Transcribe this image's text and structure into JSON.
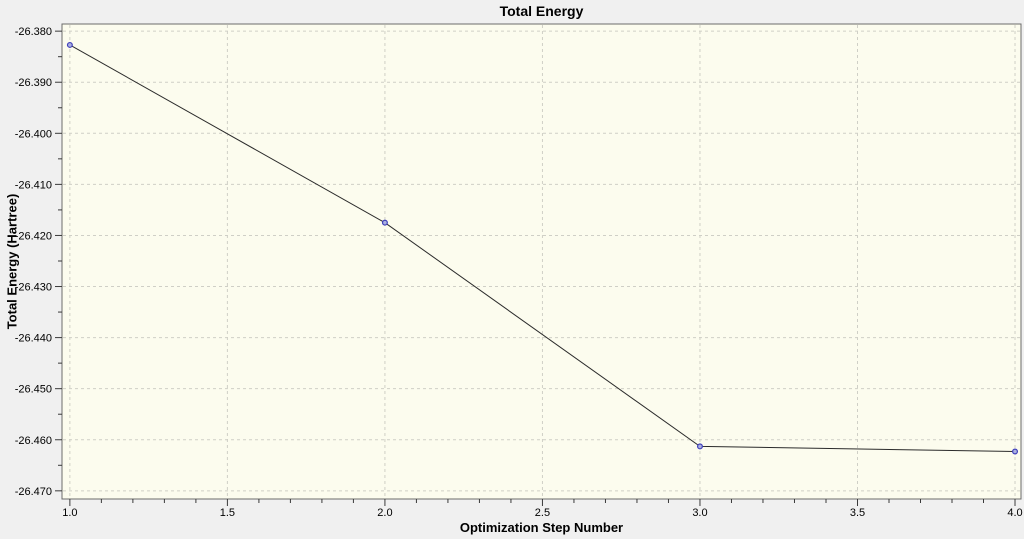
{
  "window": {
    "background": "#f0f0f0"
  },
  "chart_data": {
    "type": "line",
    "title": "Total Energy",
    "xlabel": "Optimization Step Number",
    "ylabel": "Total Energy (Hartree)",
    "series": [
      {
        "name": "Total Energy",
        "x": [
          1.0,
          2.0,
          3.0,
          4.0
        ],
        "y": [
          -26.3827,
          -26.4175,
          -26.4613,
          -26.4623
        ]
      }
    ],
    "xlim": [
      0.975,
      4.019
    ],
    "ylim": [
      -26.4716,
      -26.3786
    ],
    "x_axis": {
      "major_tick_labels": [
        "1.0",
        "1.5",
        "2.0",
        "2.5",
        "3.0",
        "3.5",
        "4.0"
      ],
      "minor_step": 0.1
    },
    "y_axis": {
      "major_tick_labels": [
        "-26.380",
        "-26.390",
        "-26.400",
        "-26.410",
        "-26.420",
        "-26.430",
        "-26.440",
        "-26.450",
        "-26.460",
        "-26.470"
      ],
      "minor_step": 0.005
    },
    "grid": "dashed-major",
    "legend": "none",
    "colors": {
      "plot_bg": "#fcfcee",
      "outer_bg": "#f0f0f0",
      "grid": "#cfcfc6",
      "border": "#6b6b6b",
      "tick": "#3a3a3a",
      "line": "#2b2b2b",
      "marker_stroke": "#4040bb",
      "marker_fill": "#aab0e0",
      "text": "#000000"
    }
  }
}
